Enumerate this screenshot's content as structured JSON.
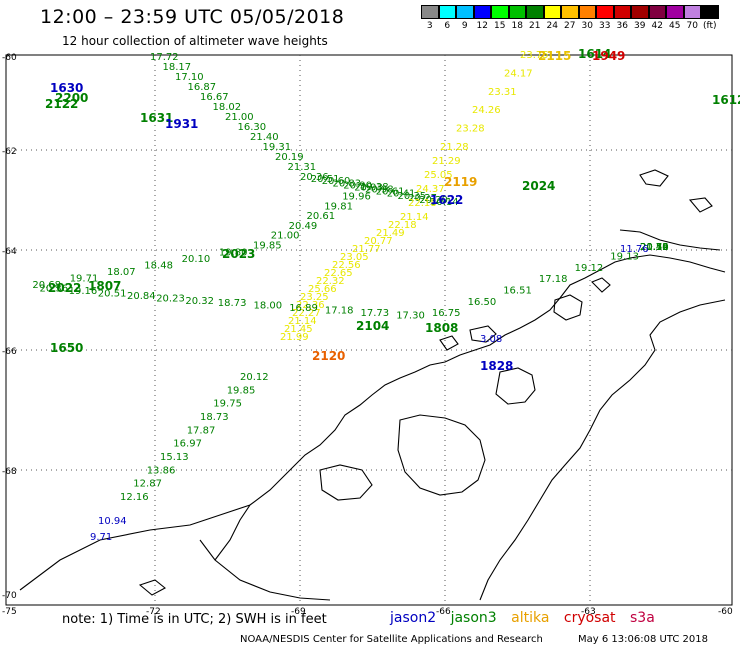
{
  "header": {
    "title": "12:00 – 23:59 UTC 05/05/2018",
    "subtitle": "12 hour collection of altimeter wave heights"
  },
  "legend": {
    "colors": [
      "#888888",
      "#00ffff",
      "#00c0ff",
      "#0000ff",
      "#00ff00",
      "#00c000",
      "#008000",
      "#ffff00",
      "#ffc000",
      "#ff8000",
      "#ff0000",
      "#d00000",
      "#a00000",
      "#800040",
      "#a000a0",
      "#c080e0",
      "#000000"
    ],
    "labels": [
      "3",
      "6",
      "9",
      "12",
      "15",
      "18",
      "21",
      "24",
      "27",
      "30",
      "33",
      "36",
      "39",
      "42",
      "45",
      "70"
    ],
    "unit": "(ft)"
  },
  "axes": {
    "lat_labels": [
      "-60",
      "-62",
      "-64",
      "-66",
      "-68",
      "-70"
    ],
    "lon_labels": [
      "-75",
      "-72",
      "-69",
      "-66",
      "-63",
      "-60"
    ]
  },
  "tracks": [
    {
      "name": "track-upper-left",
      "color": "#008000",
      "labels": [
        "17.72",
        "18.17",
        "17.10",
        "16.87",
        "16.67",
        "18.02",
        "21.00",
        "16.30",
        "21.40",
        "19.31",
        "20.19",
        "21.31",
        "20.36",
        "20.51",
        "20.60",
        "20.83",
        "20.90",
        "20.93",
        "20.98",
        "20.61",
        "20.41",
        "20.35",
        "20.27",
        "20.20",
        "20.14"
      ]
    },
    {
      "name": "track-altika-right",
      "color": "#e8e800",
      "labels": [
        "23.75",
        "24.17",
        "23.31",
        "24.26",
        "23.28",
        "21.28",
        "21.29",
        "25.05",
        "24.37",
        "22.18",
        "21.14",
        "22.18",
        "21.49",
        "20.77",
        "21.77",
        "23.05",
        "22.56",
        "22.65",
        "22.32",
        "25.66",
        "23.25",
        "22.36",
        "22.27",
        "21.14",
        "21.45",
        "21.99"
      ]
    },
    {
      "name": "track-jason3-mid",
      "color": "#008000",
      "labels": [
        "19.38",
        "19.96",
        "19.81",
        "20.61",
        "20.49",
        "21.00",
        "19.85",
        "19.80",
        "20.10",
        "18.48",
        "18.07",
        "19.71",
        "20.68",
        "20.36",
        "19.16",
        "20.51",
        "20.84",
        "20.23",
        "20.32",
        "18.73",
        "18.00",
        "16.89",
        "17.18",
        "17.73",
        "17.30",
        "16.75",
        "16.50",
        "16.51",
        "17.18",
        "19.12",
        "19.13",
        "20.14",
        "20.49",
        "20.72",
        "20.76",
        "20.52",
        "20.50",
        "21.30"
      ]
    },
    {
      "name": "track-jason3-descending",
      "color": "#008000",
      "labels": [
        "20.12",
        "19.85",
        "19.75",
        "18.73",
        "17.87",
        "16.97",
        "15.13",
        "13.86",
        "12.87",
        "12.16"
      ]
    },
    {
      "name": "track-jason2",
      "color": "#0000c0",
      "labels": [
        "10.94",
        "9.71",
        "11.76",
        "3.08"
      ]
    }
  ],
  "time_labels": [
    {
      "text": "1630",
      "color": "#0000c0"
    },
    {
      "text": "2200",
      "color": "#008000"
    },
    {
      "text": "2122",
      "color": "#008000"
    },
    {
      "text": "1631",
      "color": "#008000"
    },
    {
      "text": "1931",
      "color": "#0000c0"
    },
    {
      "text": "2115",
      "color": "#e8c000"
    },
    {
      "text": "1614",
      "color": "#008000"
    },
    {
      "text": "1949",
      "color": "#d00000"
    },
    {
      "text": "1612",
      "color": "#008000"
    },
    {
      "text": "2119",
      "color": "#e8a000"
    },
    {
      "text": "2024",
      "color": "#008000"
    },
    {
      "text": "1622",
      "color": "#0000c0"
    },
    {
      "text": "2023",
      "color": "#008000"
    },
    {
      "text": "1807",
      "color": "#008000"
    },
    {
      "text": "2022",
      "color": "#008000"
    },
    {
      "text": "2104",
      "color": "#008000"
    },
    {
      "text": "1808",
      "color": "#008000"
    },
    {
      "text": "2120",
      "color": "#e86000"
    },
    {
      "text": "1828",
      "color": "#0000c0"
    },
    {
      "text": "1650",
      "color": "#008000"
    }
  ],
  "footer": {
    "note": "note:  1) Time is in UTC;  2) SWH is in feet",
    "satellites": [
      {
        "name": "jason2",
        "color": "#0000c0"
      },
      {
        "name": "jason3",
        "color": "#008000"
      },
      {
        "name": "altika",
        "color": "#e8a000"
      },
      {
        "name": "cryosat",
        "color": "#d00000"
      },
      {
        "name": "s3a",
        "color": "#c00040"
      }
    ],
    "credit": "NOAA/NESDIS Center for Satellite Applications and Research",
    "timestamp": "May  6 13:06:08 UTC 2018"
  }
}
